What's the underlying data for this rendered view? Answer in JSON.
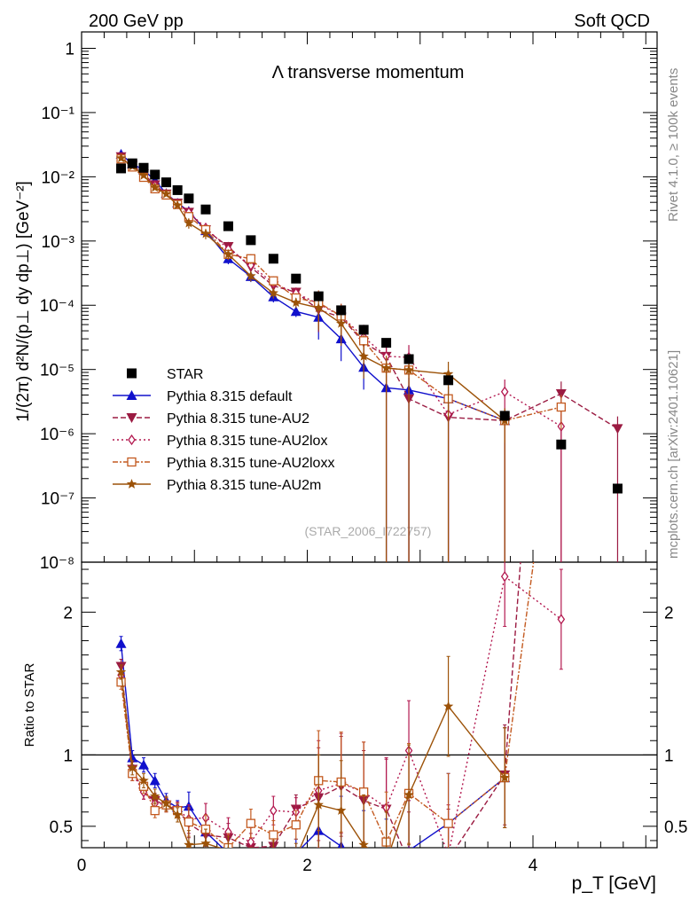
{
  "header": {
    "left": "200 GeV pp",
    "right": "Soft QCD"
  },
  "side_text": {
    "rivet": "Rivet 4.1.0, ≥ 100k events",
    "mcplots": "mcplots.cern.ch [arXiv:2401.10621]"
  },
  "chart_data": {
    "type": "scatter",
    "title": "Λ transverse momentum",
    "analysis_tag": "(STAR_2006_I722757)",
    "ylabel_main": "1/(2π)  d²N/(p⊥ dy dp⊥) [GeV⁻²]",
    "ylabel_ratio": "Ratio to STAR",
    "xlabel": "p_T [GeV]",
    "xlim": [
      0,
      5.1
    ],
    "ylim_main": [
      1e-08,
      1.8
    ],
    "ylim_ratio": [
      0.35,
      2.35
    ],
    "x_ticks": [
      "0",
      "2",
      "4"
    ],
    "y_ticks_main": [
      "1",
      "10⁻¹",
      "10⁻²",
      "10⁻³",
      "10⁻⁴",
      "10⁻⁵",
      "10⁻⁶",
      "10⁻⁷",
      "10⁻⁸"
    ],
    "y_ticks_ratio": [
      "0.5",
      "1",
      "2"
    ],
    "legend": [
      "STAR",
      "Pythia 8.315 default",
      "Pythia 8.315 tune-AU2",
      "Pythia 8.315 tune-AU2lox",
      "Pythia 8.315 tune-AU2loxx",
      "Pythia 8.315 tune-AU2m"
    ],
    "x": [
      0.35,
      0.45,
      0.55,
      0.65,
      0.75,
      0.85,
      0.95,
      1.1,
      1.3,
      1.5,
      1.7,
      1.9,
      2.1,
      2.3,
      2.5,
      2.7,
      2.9,
      3.25,
      3.75,
      4.25,
      4.75
    ],
    "data": {
      "name": "STAR",
      "color": "#000000",
      "values": [
        0.0135,
        0.0162,
        0.0138,
        0.0108,
        0.0082,
        0.0062,
        0.0046,
        0.0031,
        0.0017,
        0.00103,
        0.00053,
        0.00026,
        0.000138,
        8.35e-05,
        4.15e-05,
        2.6e-05,
        1.45e-05,
        6.8e-06,
        1.9e-06,
        6.8e-07,
        1.4e-07
      ]
    },
    "series": [
      {
        "name": "Pythia 8.315 default",
        "color": "#1010cc",
        "marker": "triangle-up",
        "dash": "",
        "values": [
          0.0225,
          0.0158,
          0.0128,
          0.0088,
          0.0055,
          0.0039,
          0.0029,
          0.00145,
          0.00053,
          0.00028,
          0.000135,
          8e-05,
          6.5e-05,
          3e-05,
          1.08e-05,
          5.2e-06,
          4.8e-06,
          3.5e-06,
          1.6e-06,
          null,
          null
        ],
        "ratio": [
          1.78,
          0.98,
          0.93,
          0.82,
          0.68,
          0.63,
          0.64,
          0.46,
          0.31,
          0.27,
          0.25,
          0.31,
          0.47,
          0.36,
          0.26,
          0.2,
          0.33,
          0.52,
          0.84,
          null,
          null
        ]
      },
      {
        "name": "Pythia 8.315 tune-AU2",
        "color": "#9b1b42",
        "marker": "triangle-down",
        "dash": "6,3",
        "values": [
          0.0205,
          0.0152,
          0.011,
          0.0075,
          0.0054,
          0.0039,
          0.0028,
          0.0015,
          0.00082,
          0.00039,
          0.0002,
          0.00016,
          8.5e-05,
          6.5e-05,
          2.65e-05,
          1.6e-05,
          3.5e-06,
          1.8e-06,
          1.6e-06,
          4.2e-06,
          1.2e-06
        ],
        "ratio": [
          1.62,
          0.9,
          0.74,
          0.68,
          0.65,
          0.61,
          0.52,
          0.44,
          0.42,
          0.35,
          0.36,
          0.62,
          0.7,
          0.78,
          0.68,
          0.62,
          0.25,
          0.27,
          0.86,
          6.2,
          8.5
        ]
      },
      {
        "name": "Pythia 8.315 tune-AU2lox",
        "color": "#b3184f",
        "marker": "diamond-open",
        "dash": "2,3",
        "values": [
          0.0198,
          0.0148,
          0.0106,
          0.0073,
          0.0054,
          0.0038,
          0.0028,
          0.0016,
          0.00075,
          0.00042,
          0.00022,
          0.000155,
          0.000105,
          6.8e-05,
          3.2e-05,
          1.6e-05,
          1.55e-05,
          2e-06,
          4.5e-06,
          1.3e-06,
          null
        ],
        "ratio": [
          1.56,
          0.87,
          0.74,
          0.66,
          0.66,
          0.62,
          0.55,
          0.56,
          0.46,
          0.39,
          0.61,
          0.6,
          0.75,
          0.8,
          0.74,
          0.63,
          1.03,
          0.3,
          2.25,
          1.95,
          null
        ]
      },
      {
        "name": "Pythia 8.315 tune-AU2loxx",
        "color": "#c35a20",
        "marker": "square-open",
        "dash": "6,2,2,2",
        "values": [
          0.019,
          0.0142,
          0.0098,
          0.0065,
          0.0052,
          0.0037,
          0.0024,
          0.0015,
          0.00062,
          0.00053,
          0.00024,
          0.00013,
          0.00011,
          6.8e-05,
          2.8e-05,
          1.05e-05,
          9.8e-06,
          3.5e-06,
          1.6e-06,
          2.6e-06,
          null
        ],
        "ratio": [
          1.51,
          0.87,
          0.78,
          0.61,
          0.65,
          0.61,
          0.53,
          0.48,
          0.35,
          0.52,
          0.44,
          0.51,
          0.82,
          0.81,
          0.74,
          0.39,
          0.73,
          0.52,
          0.84,
          3.8,
          null
        ]
      },
      {
        "name": "Pythia 8.315 tune-AU2m",
        "color": "#9c5208",
        "marker": "star",
        "dash": "",
        "values": [
          0.0195,
          0.0146,
          0.0105,
          0.0068,
          0.0054,
          0.0036,
          0.0019,
          0.0013,
          0.00062,
          0.000285,
          0.000155,
          0.00011,
          9.1e-05,
          5.2e-05,
          1.6e-05,
          1.05e-05,
          9.8e-06,
          8.5e-06,
          1.6e-06,
          null,
          null
        ],
        "ratio": [
          1.58,
          0.91,
          0.82,
          0.71,
          0.66,
          0.58,
          0.37,
          0.38,
          0.33,
          0.25,
          0.3,
          0.28,
          0.65,
          0.61,
          0.37,
          0.25,
          0.72,
          1.34,
          0.84,
          null,
          null
        ]
      }
    ]
  }
}
